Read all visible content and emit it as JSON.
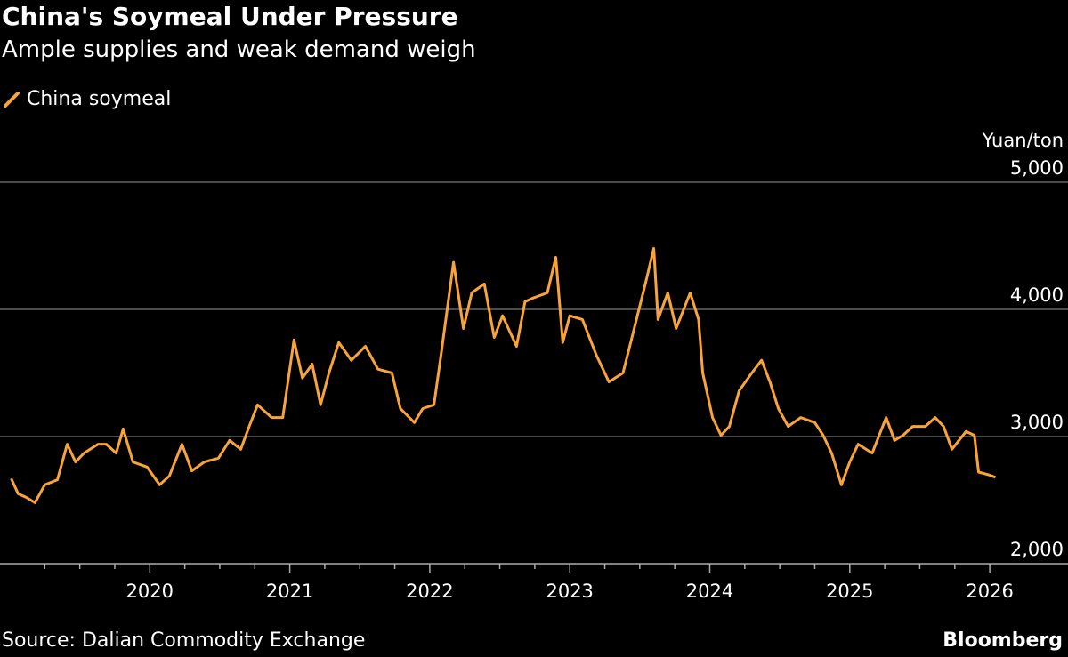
{
  "title": "China's Soymeal Under Pressure",
  "subtitle": "Ample supplies and weak demand weigh",
  "source": "Source: Dalian Commodity Exchange",
  "brand": "Bloomberg",
  "chart_data": {
    "type": "line",
    "title": "China's Soymeal Under Pressure",
    "subtitle": "Ample supplies and weak demand weigh",
    "ylabel": "Yuan/ton",
    "xlabel": "",
    "ylim": [
      2000,
      5000
    ],
    "xlim": [
      2019.0,
      2026.1
    ],
    "yticks": [
      5000,
      4000,
      3000,
      2000
    ],
    "ytick_labels": [
      "5,000",
      "4,000",
      "3,000",
      "2,000"
    ],
    "xticks": [
      2020,
      2021,
      2022,
      2023,
      2024,
      2025,
      2026
    ],
    "xtick_labels": [
      "2020",
      "2021",
      "2022",
      "2023",
      "2024",
      "2025",
      "2026"
    ],
    "grid": "horizontal",
    "legend": "top-left",
    "series": [
      {
        "name": "China soymeal",
        "color": "#f9a43a",
        "x": [
          2019.01,
          2019.06,
          2019.12,
          2019.18,
          2019.25,
          2019.34,
          2019.41,
          2019.47,
          2019.53,
          2019.63,
          2019.69,
          2019.76,
          2019.81,
          2019.88,
          2019.98,
          2020.07,
          2020.14,
          2020.23,
          2020.3,
          2020.39,
          2020.49,
          2020.57,
          2020.65,
          2020.71,
          2020.77,
          2020.87,
          2020.95,
          2021.03,
          2021.09,
          2021.16,
          2021.22,
          2021.28,
          2021.35,
          2021.44,
          2021.54,
          2021.63,
          2021.73,
          2021.79,
          2021.89,
          2021.95,
          2022.03,
          2022.08,
          2022.17,
          2022.24,
          2022.3,
          2022.39,
          2022.46,
          2022.52,
          2022.62,
          2022.68,
          2022.74,
          2022.84,
          2022.9,
          2022.95,
          2023.0,
          2023.09,
          2023.19,
          2023.28,
          2023.38,
          2023.46,
          2023.54,
          2023.6,
          2023.63,
          2023.7,
          2023.76,
          2023.86,
          2023.92,
          2023.95,
          2024.02,
          2024.08,
          2024.14,
          2024.21,
          2024.3,
          2024.37,
          2024.43,
          2024.49,
          2024.56,
          2024.65,
          2024.75,
          2024.81,
          2024.87,
          2024.94,
          2025.0,
          2025.06,
          2025.16,
          2025.26,
          2025.32,
          2025.38,
          2025.45,
          2025.54,
          2025.61,
          2025.67,
          2025.73,
          2025.83,
          2025.89,
          2025.92,
          2025.99,
          2026.04
        ],
        "values": [
          2670,
          2550,
          2520,
          2480,
          2620,
          2660,
          2940,
          2800,
          2870,
          2940,
          2940,
          2870,
          3060,
          2800,
          2760,
          2620,
          2690,
          2940,
          2730,
          2800,
          2830,
          2970,
          2900,
          3080,
          3250,
          3150,
          3150,
          3760,
          3460,
          3570,
          3250,
          3500,
          3740,
          3600,
          3710,
          3530,
          3500,
          3220,
          3110,
          3220,
          3250,
          3640,
          4370,
          3850,
          4130,
          4200,
          3780,
          3950,
          3710,
          4060,
          4090,
          4130,
          4410,
          3740,
          3950,
          3920,
          3640,
          3430,
          3500,
          3850,
          4200,
          4480,
          3920,
          4130,
          3850,
          4130,
          3920,
          3500,
          3150,
          3010,
          3080,
          3360,
          3500,
          3600,
          3430,
          3220,
          3080,
          3150,
          3110,
          3010,
          2870,
          2620,
          2800,
          2940,
          2870,
          3150,
          2970,
          3010,
          3080,
          3080,
          3150,
          3080,
          2900,
          3040,
          3010,
          2720,
          2700,
          2680
        ]
      }
    ]
  }
}
